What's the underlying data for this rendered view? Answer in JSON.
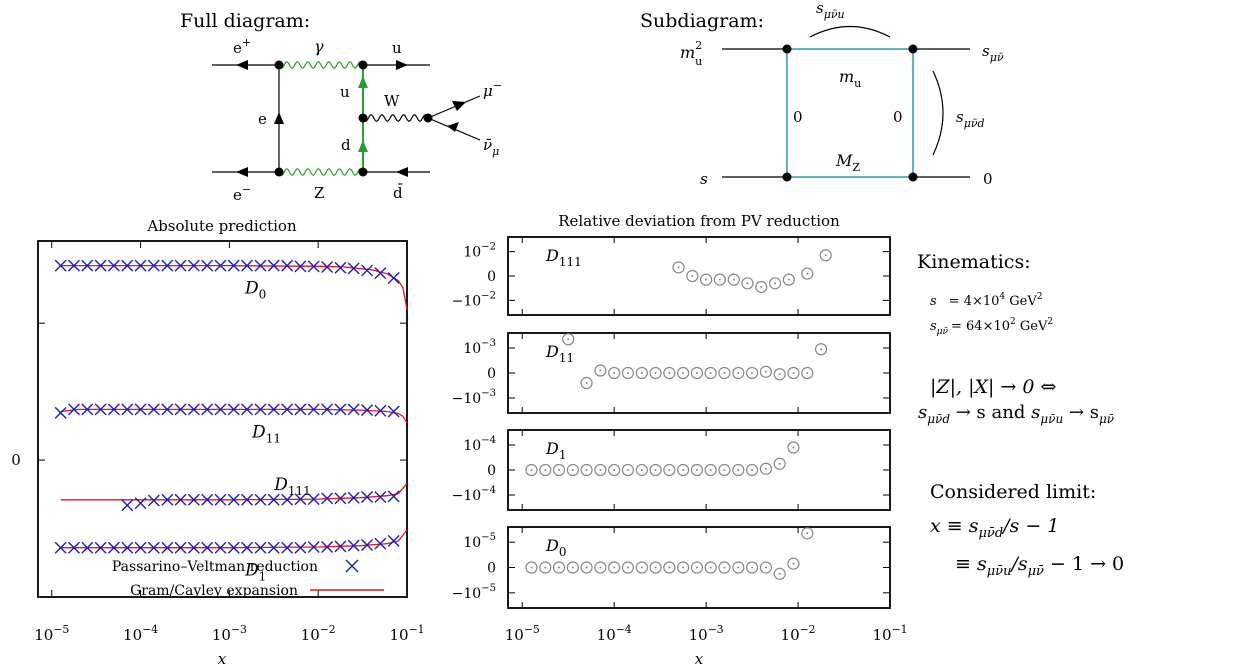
{
  "full_diagram": {
    "title": "Full diagram:",
    "labels": {
      "e_plus": "e",
      "e_plus_sup": "+",
      "gamma": "γ",
      "u_top": "u",
      "e_prop": "e",
      "u_inner": "u",
      "W": "W",
      "mu_minus": "μ",
      "mu_minus_sup": "−",
      "d_inner": "d",
      "nu_bar": "ν̄",
      "nu_sub": "μ",
      "e_minus": "e",
      "e_minus_sup": "−",
      "Z": "Z",
      "d_bar": "d̄"
    }
  },
  "sub_diagram": {
    "title": "Subdiagram:",
    "labels": {
      "s_top": "s",
      "s_top_sub": "μν̄u",
      "m_u2": "m",
      "m_u2_sub": "u",
      "m_u2_sup": "2",
      "s_out": "s",
      "s_out_sub": "μν̄",
      "m_u": "m",
      "m_u_sub": "u",
      "zero_left": "0",
      "zero_right": "0",
      "s_right": "s",
      "s_right_sub": "μν̄d",
      "M_Z": "M",
      "M_Z_sub": "Z",
      "s_in": "s",
      "zero_out": "0"
    }
  },
  "side_text": {
    "kinematics_title": "Kinematics:",
    "s_label": "s",
    "s_value": "= 4×10",
    "s_exp": "4",
    "s_unit": " GeV",
    "s_unit_exp": "2",
    "smunu_label": "s",
    "smunu_sub": "μν̄",
    "smunu_value": "= 64×10",
    "smunu_exp": "2",
    "smunu_unit": " GeV",
    "smunu_unit_exp": "2",
    "limit_line1": "|Z|, |X| → 0  ⇔",
    "limit_line2_a": "s",
    "limit_line2_a_sub": "μν̄d",
    "limit_line2_b": " → s  and  ",
    "limit_line2_c": "s",
    "limit_line2_c_sub": "μν̄u",
    "limit_line2_d": " → s",
    "limit_line2_d_sub": "μν̄",
    "considered_title": "Considered limit:",
    "x_def1_a": "x ≡ s",
    "x_def1_sub": "μν̄d",
    "x_def1_b": "/s − 1",
    "x_def2_a": "≡ s",
    "x_def2_sub1": "μν̄u",
    "x_def2_b": "/s",
    "x_def2_sub2": "μν̄",
    "x_def2_c": " − 1 → 0"
  },
  "chart_data": [
    {
      "type": "line",
      "title": "Absolute prediction",
      "xlabel": "x",
      "x_scale": "log",
      "xlim": [
        7e-06,
        0.1
      ],
      "x_ticks": [
        1e-05,
        0.0001,
        0.001,
        0.01,
        0.1
      ],
      "x_tick_labels": [
        {
          "base": "10",
          "exp": "−5"
        },
        {
          "base": "10",
          "exp": "−4"
        },
        {
          "base": "10",
          "exp": "−3"
        },
        {
          "base": "10",
          "exp": "−2"
        },
        {
          "base": "10",
          "exp": "−1"
        }
      ],
      "ylim": [
        -1,
        1.6
      ],
      "y_tick_labels": [
        {
          "value": 0,
          "label": "0"
        }
      ],
      "y_ticks": [
        -1,
        0,
        1
      ],
      "legend": {
        "placement": "bottom-right",
        "entries": [
          {
            "label": "Passarino–Veltman reduction",
            "marker": "x",
            "color": "#1f1fb4"
          },
          {
            "label": "Gram/Cayley expansion",
            "marker": "line",
            "color": "#e8141e"
          }
        ]
      },
      "colors": {
        "pv": "#1f1fb4",
        "gc": "#e8141e"
      },
      "series": [
        {
          "curve_label": "D",
          "curve_sub": "0",
          "pv_x": [
            1.26e-05,
            1.78e-05,
            2.51e-05,
            3.55e-05,
            5.01e-05,
            7.08e-05,
            0.0001,
            0.000141,
            0.0002,
            0.000282,
            0.000398,
            0.000562,
            0.000794,
            0.00112,
            0.00158,
            0.00224,
            0.00316,
            0.00447,
            0.00631,
            0.00891,
            0.0126,
            0.0178,
            0.0251,
            0.0355,
            0.0501,
            0.0708
          ],
          "pv_y": [
            1.42,
            1.42,
            1.42,
            1.42,
            1.42,
            1.42,
            1.42,
            1.42,
            1.42,
            1.42,
            1.42,
            1.42,
            1.42,
            1.42,
            1.42,
            1.42,
            1.42,
            1.42,
            1.415,
            1.415,
            1.41,
            1.405,
            1.4,
            1.385,
            1.365,
            1.33
          ],
          "gc_x": [
            1.26e-05,
            0.0001,
            0.001,
            0.01,
            0.02,
            0.04,
            0.06,
            0.08,
            0.09,
            0.1
          ],
          "gc_y": [
            1.42,
            1.42,
            1.42,
            1.415,
            1.41,
            1.39,
            1.36,
            1.31,
            1.26,
            1.1
          ]
        },
        {
          "curve_label": "D",
          "curve_sub": "11",
          "pv_x": [
            1.26e-05,
            1.78e-05,
            2.51e-05,
            3.55e-05,
            5.01e-05,
            7.08e-05,
            0.0001,
            0.000141,
            0.0002,
            0.000282,
            0.000398,
            0.000562,
            0.000794,
            0.00112,
            0.00158,
            0.00224,
            0.00316,
            0.00447,
            0.00631,
            0.00891,
            0.0126,
            0.0178,
            0.0251,
            0.0355,
            0.0501,
            0.0708
          ],
          "pv_y": [
            0.345,
            0.37,
            0.37,
            0.37,
            0.37,
            0.37,
            0.37,
            0.37,
            0.37,
            0.37,
            0.37,
            0.37,
            0.37,
            0.37,
            0.37,
            0.37,
            0.37,
            0.37,
            0.37,
            0.37,
            0.37,
            0.37,
            0.37,
            0.365,
            0.36,
            0.355
          ],
          "gc_x": [
            1.26e-05,
            2e-05,
            0.0001,
            0.001,
            0.01,
            0.03,
            0.06,
            0.08,
            0.09,
            0.1
          ],
          "gc_y": [
            0.355,
            0.37,
            0.37,
            0.37,
            0.37,
            0.365,
            0.355,
            0.34,
            0.32,
            0.27
          ]
        },
        {
          "curve_label": "D",
          "curve_sub": "111",
          "pv_x": [
            7.08e-05,
            0.0001,
            0.000141,
            0.0002,
            0.000282,
            0.000398,
            0.000562,
            0.000794,
            0.00112,
            0.00158,
            0.00224,
            0.00316,
            0.00447,
            0.00631,
            0.00891,
            0.0126,
            0.0178,
            0.0251,
            0.0355,
            0.0501,
            0.0708
          ],
          "pv_y": [
            -0.33,
            -0.315,
            -0.295,
            -0.29,
            -0.29,
            -0.29,
            -0.29,
            -0.29,
            -0.29,
            -0.29,
            -0.29,
            -0.29,
            -0.29,
            -0.285,
            -0.285,
            -0.28,
            -0.28,
            -0.275,
            -0.27,
            -0.27,
            -0.265
          ],
          "gc_x": [
            1.26e-05,
            0.0001,
            0.001,
            0.01,
            0.03,
            0.06,
            0.08,
            0.1
          ],
          "gc_y": [
            -0.29,
            -0.29,
            -0.29,
            -0.285,
            -0.275,
            -0.26,
            -0.245,
            -0.17
          ]
        },
        {
          "curve_label": "D",
          "curve_sub": "1",
          "pv_x": [
            1.26e-05,
            1.78e-05,
            2.51e-05,
            3.55e-05,
            5.01e-05,
            7.08e-05,
            0.0001,
            0.000141,
            0.0002,
            0.000282,
            0.000398,
            0.000562,
            0.000794,
            0.00112,
            0.00158,
            0.00224,
            0.00316,
            0.00447,
            0.00631,
            0.00891,
            0.0126,
            0.0178,
            0.0251,
            0.0355,
            0.0501,
            0.0708
          ],
          "pv_y": [
            -0.64,
            -0.64,
            -0.64,
            -0.64,
            -0.64,
            -0.64,
            -0.64,
            -0.64,
            -0.64,
            -0.64,
            -0.64,
            -0.64,
            -0.64,
            -0.64,
            -0.64,
            -0.64,
            -0.64,
            -0.64,
            -0.64,
            -0.635,
            -0.635,
            -0.63,
            -0.625,
            -0.62,
            -0.61,
            -0.59
          ],
          "gc_x": [
            1.26e-05,
            0.0001,
            0.001,
            0.01,
            0.03,
            0.06,
            0.08,
            0.1
          ],
          "gc_y": [
            -0.64,
            -0.64,
            -0.64,
            -0.635,
            -0.625,
            -0.61,
            -0.59,
            -0.51
          ]
        }
      ]
    },
    {
      "type": "scatter",
      "title": "Relative deviation from PV reduction",
      "xlabel": "x",
      "x_scale": "log",
      "xlim": [
        7e-06,
        0.1
      ],
      "x_ticks": [
        1e-05,
        0.0001,
        0.001,
        0.01,
        0.1
      ],
      "x_tick_labels": [
        {
          "base": "10",
          "exp": "−5"
        },
        {
          "base": "10",
          "exp": "−4"
        },
        {
          "base": "10",
          "exp": "−3"
        },
        {
          "base": "10",
          "exp": "−2"
        },
        {
          "base": "10",
          "exp": "−1"
        }
      ],
      "marker": "circle-dot",
      "marker_color": "#888888",
      "panels": [
        {
          "label": "D",
          "label_sub": "111",
          "scale": 0.01,
          "y_tick_labels": [
            {
              "value": 1,
              "base": "10",
              "exp": "−2"
            },
            {
              "value": 0,
              "base": "0",
              "exp": ""
            },
            {
              "value": -1,
              "base": "−10",
              "exp": "−2"
            }
          ],
          "ylim": [
            -1.6,
            1.6
          ],
          "x": [
            0.000501,
            0.000708,
            0.001,
            0.00141,
            0.002,
            0.00282,
            0.00398,
            0.00562,
            0.00794,
            0.0126,
            0.02
          ],
          "y": [
            0.35,
            0,
            -0.15,
            -0.15,
            -0.15,
            -0.3,
            -0.45,
            -0.3,
            -0.15,
            0.1,
            0.85
          ]
        },
        {
          "label": "D",
          "label_sub": "11",
          "scale": 0.001,
          "y_tick_labels": [
            {
              "value": 1,
              "base": "10",
              "exp": "−3"
            },
            {
              "value": 0,
              "base": "0",
              "exp": ""
            },
            {
              "value": -1,
              "base": "−10",
              "exp": "−3"
            }
          ],
          "ylim": [
            -1.6,
            1.6
          ],
          "x": [
            3.16e-05,
            5.01e-05,
            7.08e-05,
            0.0001,
            0.000141,
            0.0002,
            0.000282,
            0.000398,
            0.000562,
            0.000794,
            0.00112,
            0.00158,
            0.00224,
            0.00316,
            0.00447,
            0.00631,
            0.00891,
            0.0126,
            0.0178
          ],
          "y": [
            1.35,
            -0.4,
            0.1,
            0,
            0,
            0,
            0,
            0,
            0,
            0,
            0,
            0,
            0,
            0,
            0.05,
            -0.05,
            0,
            0,
            0.95
          ]
        },
        {
          "label": "D",
          "label_sub": "1",
          "scale": 0.0001,
          "y_tick_labels": [
            {
              "value": 1,
              "base": "10",
              "exp": "−4"
            },
            {
              "value": 0,
              "base": "0",
              "exp": ""
            },
            {
              "value": -1,
              "base": "−10",
              "exp": "−4"
            }
          ],
          "ylim": [
            -1.6,
            1.6
          ],
          "x": [
            1.26e-05,
            1.78e-05,
            2.51e-05,
            3.55e-05,
            5.01e-05,
            7.08e-05,
            0.0001,
            0.000141,
            0.0002,
            0.000282,
            0.000398,
            0.000562,
            0.000794,
            0.00112,
            0.00158,
            0.00224,
            0.00316,
            0.00447,
            0.00631,
            0.00891
          ],
          "y": [
            0,
            0,
            0,
            0,
            0,
            0,
            0,
            0,
            0,
            0,
            0,
            0,
            0,
            0,
            0,
            0,
            0,
            0.05,
            0.25,
            0.9
          ]
        },
        {
          "label": "D",
          "label_sub": "0",
          "scale": 1e-05,
          "y_tick_labels": [
            {
              "value": 1,
              "base": "10",
              "exp": "−5"
            },
            {
              "value": 0,
              "base": "0",
              "exp": ""
            },
            {
              "value": -1,
              "base": "−10",
              "exp": "−5"
            }
          ],
          "ylim": [
            -1.6,
            1.6
          ],
          "x": [
            1.26e-05,
            1.78e-05,
            2.51e-05,
            3.55e-05,
            5.01e-05,
            7.08e-05,
            0.0001,
            0.000141,
            0.0002,
            0.000282,
            0.000398,
            0.000562,
            0.000794,
            0.00112,
            0.00158,
            0.00224,
            0.00316,
            0.00447,
            0.00631,
            0.00891,
            0.0126
          ],
          "y": [
            0,
            0,
            0,
            0,
            0,
            0,
            0,
            0,
            0,
            0,
            0,
            0,
            0,
            0,
            0,
            0,
            0,
            0,
            -0.25,
            0.15,
            1.35
          ]
        }
      ]
    }
  ]
}
